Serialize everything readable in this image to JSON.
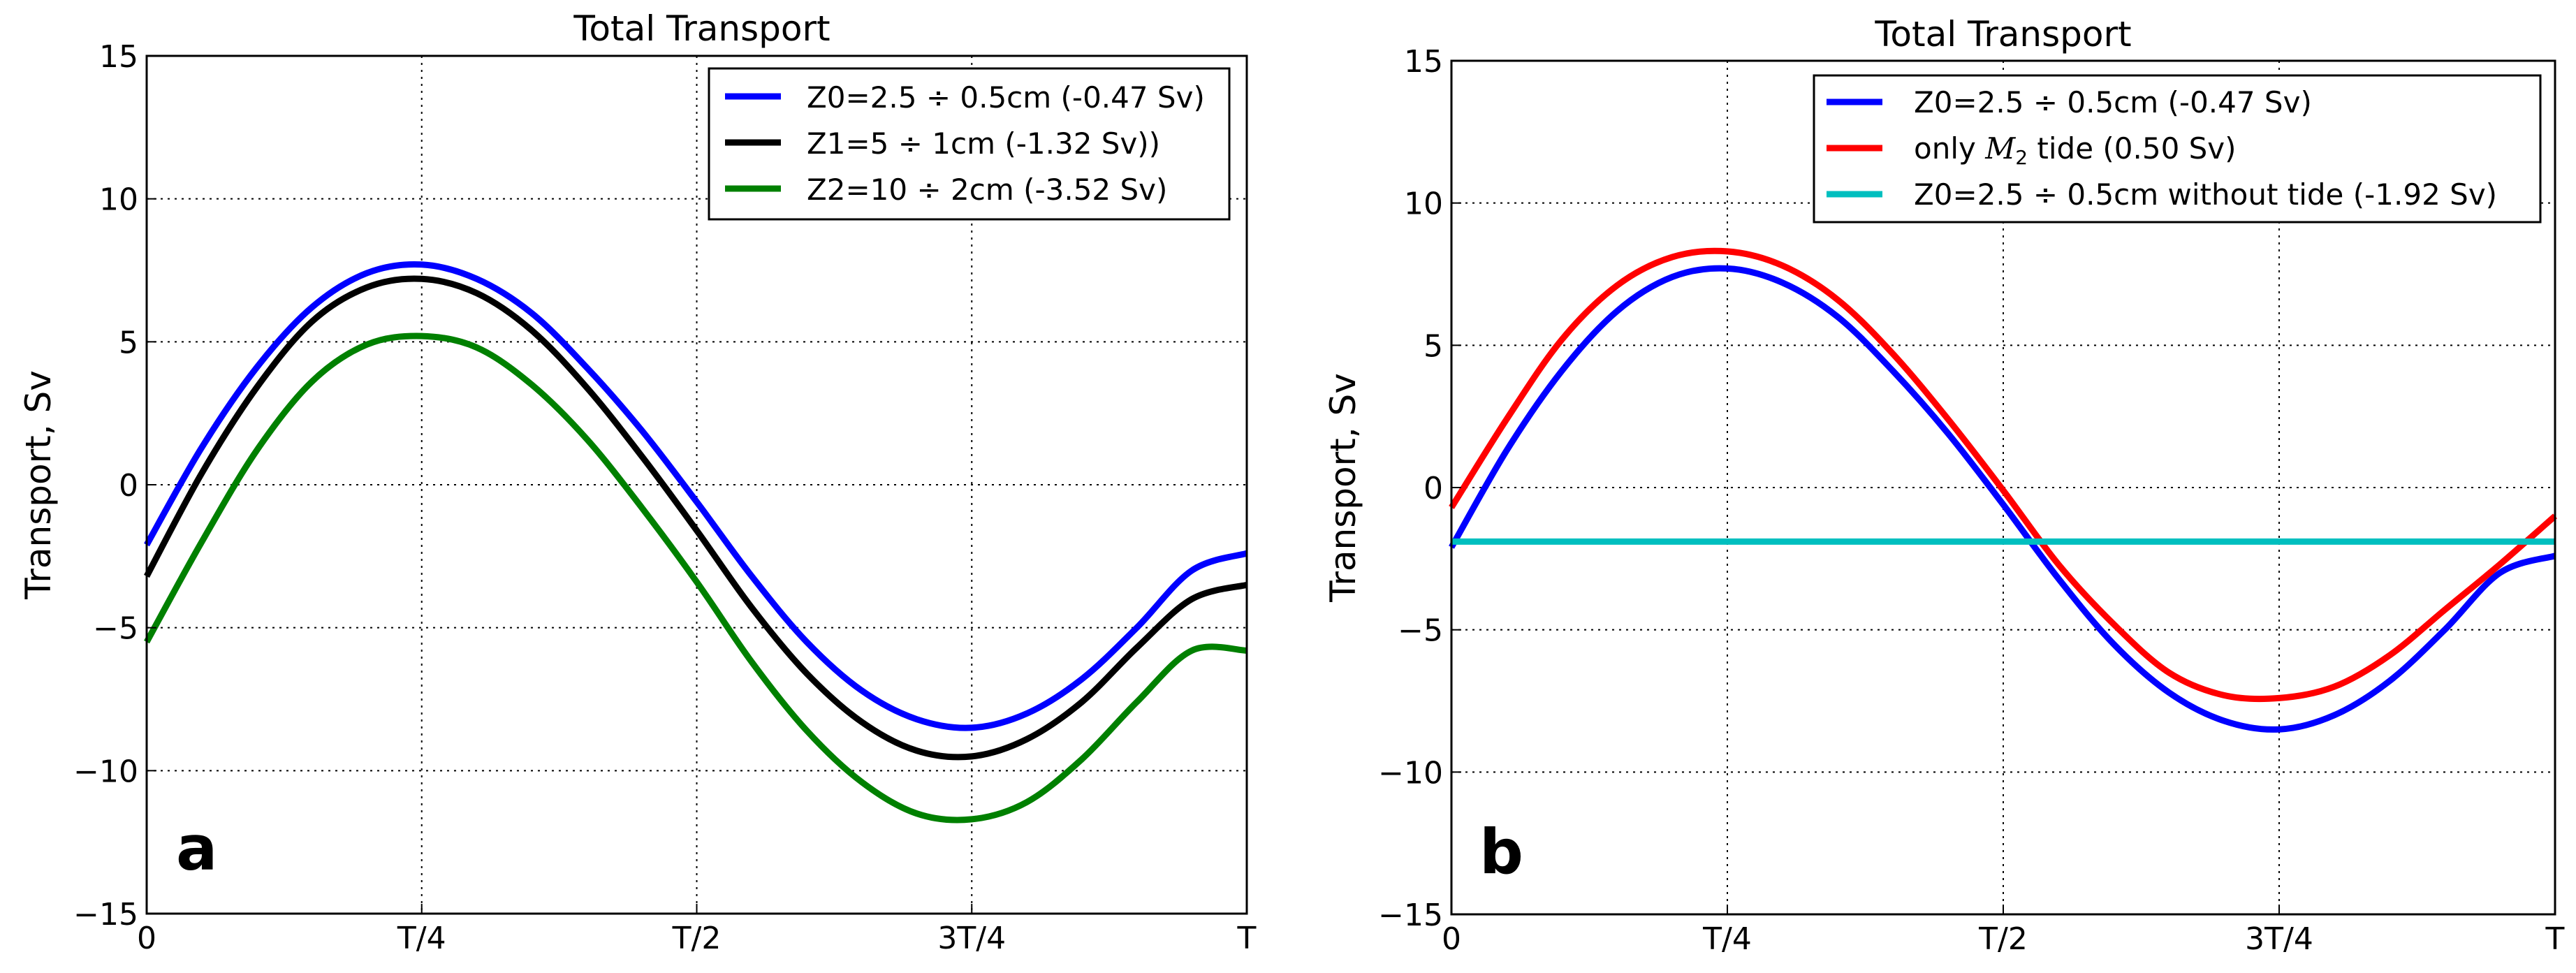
{
  "chart_data": [
    {
      "type": "line",
      "panel_label": "a",
      "title": "Total Transport",
      "xlabel": "",
      "ylabel": "Transport, Sv",
      "xticks": [
        "0",
        "T/4",
        "T/2",
        "3T/4",
        "T"
      ],
      "yticks": [
        "15",
        "10",
        "5",
        "0",
        "−5",
        "−10",
        "−15"
      ],
      "xlim": [
        0,
        1
      ],
      "ylim": [
        -15,
        15
      ],
      "grid": true,
      "legend_position": "top-right",
      "x": [
        0,
        0.05,
        0.1,
        0.15,
        0.2,
        0.25,
        0.3,
        0.35,
        0.4,
        0.45,
        0.5,
        0.55,
        0.6,
        0.65,
        0.7,
        0.75,
        0.8,
        0.85,
        0.9,
        0.95,
        1.0
      ],
      "series": [
        {
          "name": "Z0=2.5 ÷ 0.5cm (-0.47 Sv)",
          "color": "#0000ff",
          "values": [
            -2.1,
            1.3,
            4.1,
            6.2,
            7.4,
            7.7,
            7.2,
            6.0,
            4.1,
            1.9,
            -0.6,
            -3.2,
            -5.5,
            -7.2,
            -8.2,
            -8.5,
            -8.0,
            -6.8,
            -5.0,
            -3.0,
            -2.4
          ]
        },
        {
          "name": "Z1=5 ÷ 1cm (-1.32 Sv))",
          "color": "#000000",
          "values": [
            -3.2,
            0.4,
            3.4,
            5.7,
            6.9,
            7.2,
            6.7,
            5.4,
            3.4,
            1.0,
            -1.6,
            -4.3,
            -6.6,
            -8.3,
            -9.3,
            -9.5,
            -8.9,
            -7.6,
            -5.7,
            -4.0,
            -3.5
          ]
        },
        {
          "name": "Z2=10 ÷ 2cm (-3.52 Sv)",
          "color": "#008000",
          "values": [
            -5.5,
            -2.0,
            1.2,
            3.6,
            4.9,
            5.2,
            4.8,
            3.5,
            1.6,
            -0.8,
            -3.4,
            -6.2,
            -8.6,
            -10.4,
            -11.5,
            -11.7,
            -11.1,
            -9.6,
            -7.6,
            -5.8,
            -5.8
          ]
        }
      ]
    },
    {
      "type": "line",
      "panel_label": "b",
      "title": "Total Transport",
      "xlabel": "",
      "ylabel": "Transport, Sv",
      "xticks": [
        "0",
        "T/4",
        "T/2",
        "3T/4",
        "T"
      ],
      "yticks": [
        "15",
        "10",
        "5",
        "0",
        "−5",
        "−10",
        "−15"
      ],
      "xlim": [
        0,
        1
      ],
      "ylim": [
        -15,
        15
      ],
      "grid": true,
      "legend_position": "top-right",
      "x": [
        0,
        0.05,
        0.1,
        0.15,
        0.2,
        0.25,
        0.3,
        0.35,
        0.4,
        0.45,
        0.5,
        0.55,
        0.6,
        0.65,
        0.7,
        0.75,
        0.8,
        0.85,
        0.9,
        0.95,
        1.0
      ],
      "series": [
        {
          "name": "Z0=2.5 ÷ 0.5cm (-0.47 Sv)",
          "color": "#0000ff",
          "values": [
            -2.1,
            1.3,
            4.1,
            6.2,
            7.4,
            7.7,
            7.2,
            6.0,
            4.1,
            1.9,
            -0.6,
            -3.2,
            -5.5,
            -7.2,
            -8.2,
            -8.5,
            -8.0,
            -6.8,
            -5.0,
            -3.0,
            -2.4
          ]
        },
        {
          "name": "only M₂ tide (0.50 Sv)",
          "name_prefix": "only ",
          "name_symbol": "M",
          "name_subscript": "2",
          "name_suffix": " tide (0.50 Sv)",
          "color": "#ff0000",
          "values": [
            -0.7,
            2.4,
            5.2,
            7.1,
            8.1,
            8.3,
            7.8,
            6.6,
            4.7,
            2.4,
            -0.1,
            -2.7,
            -4.8,
            -6.5,
            -7.3,
            -7.4,
            -7.0,
            -5.9,
            -4.3,
            -2.7,
            -1.0
          ]
        },
        {
          "name": "Z0=2.5 ÷ 0.5cm without tide (-1.92 Sv)",
          "color": "#00bfbf",
          "values": [
            -1.9,
            -1.9,
            -1.9,
            -1.9,
            -1.9,
            -1.9,
            -1.9,
            -1.9,
            -1.9,
            -1.9,
            -1.9,
            -1.9,
            -1.9,
            -1.9,
            -1.9,
            -1.9,
            -1.9,
            -1.9,
            -1.9,
            -1.9,
            -1.9
          ]
        }
      ]
    }
  ]
}
